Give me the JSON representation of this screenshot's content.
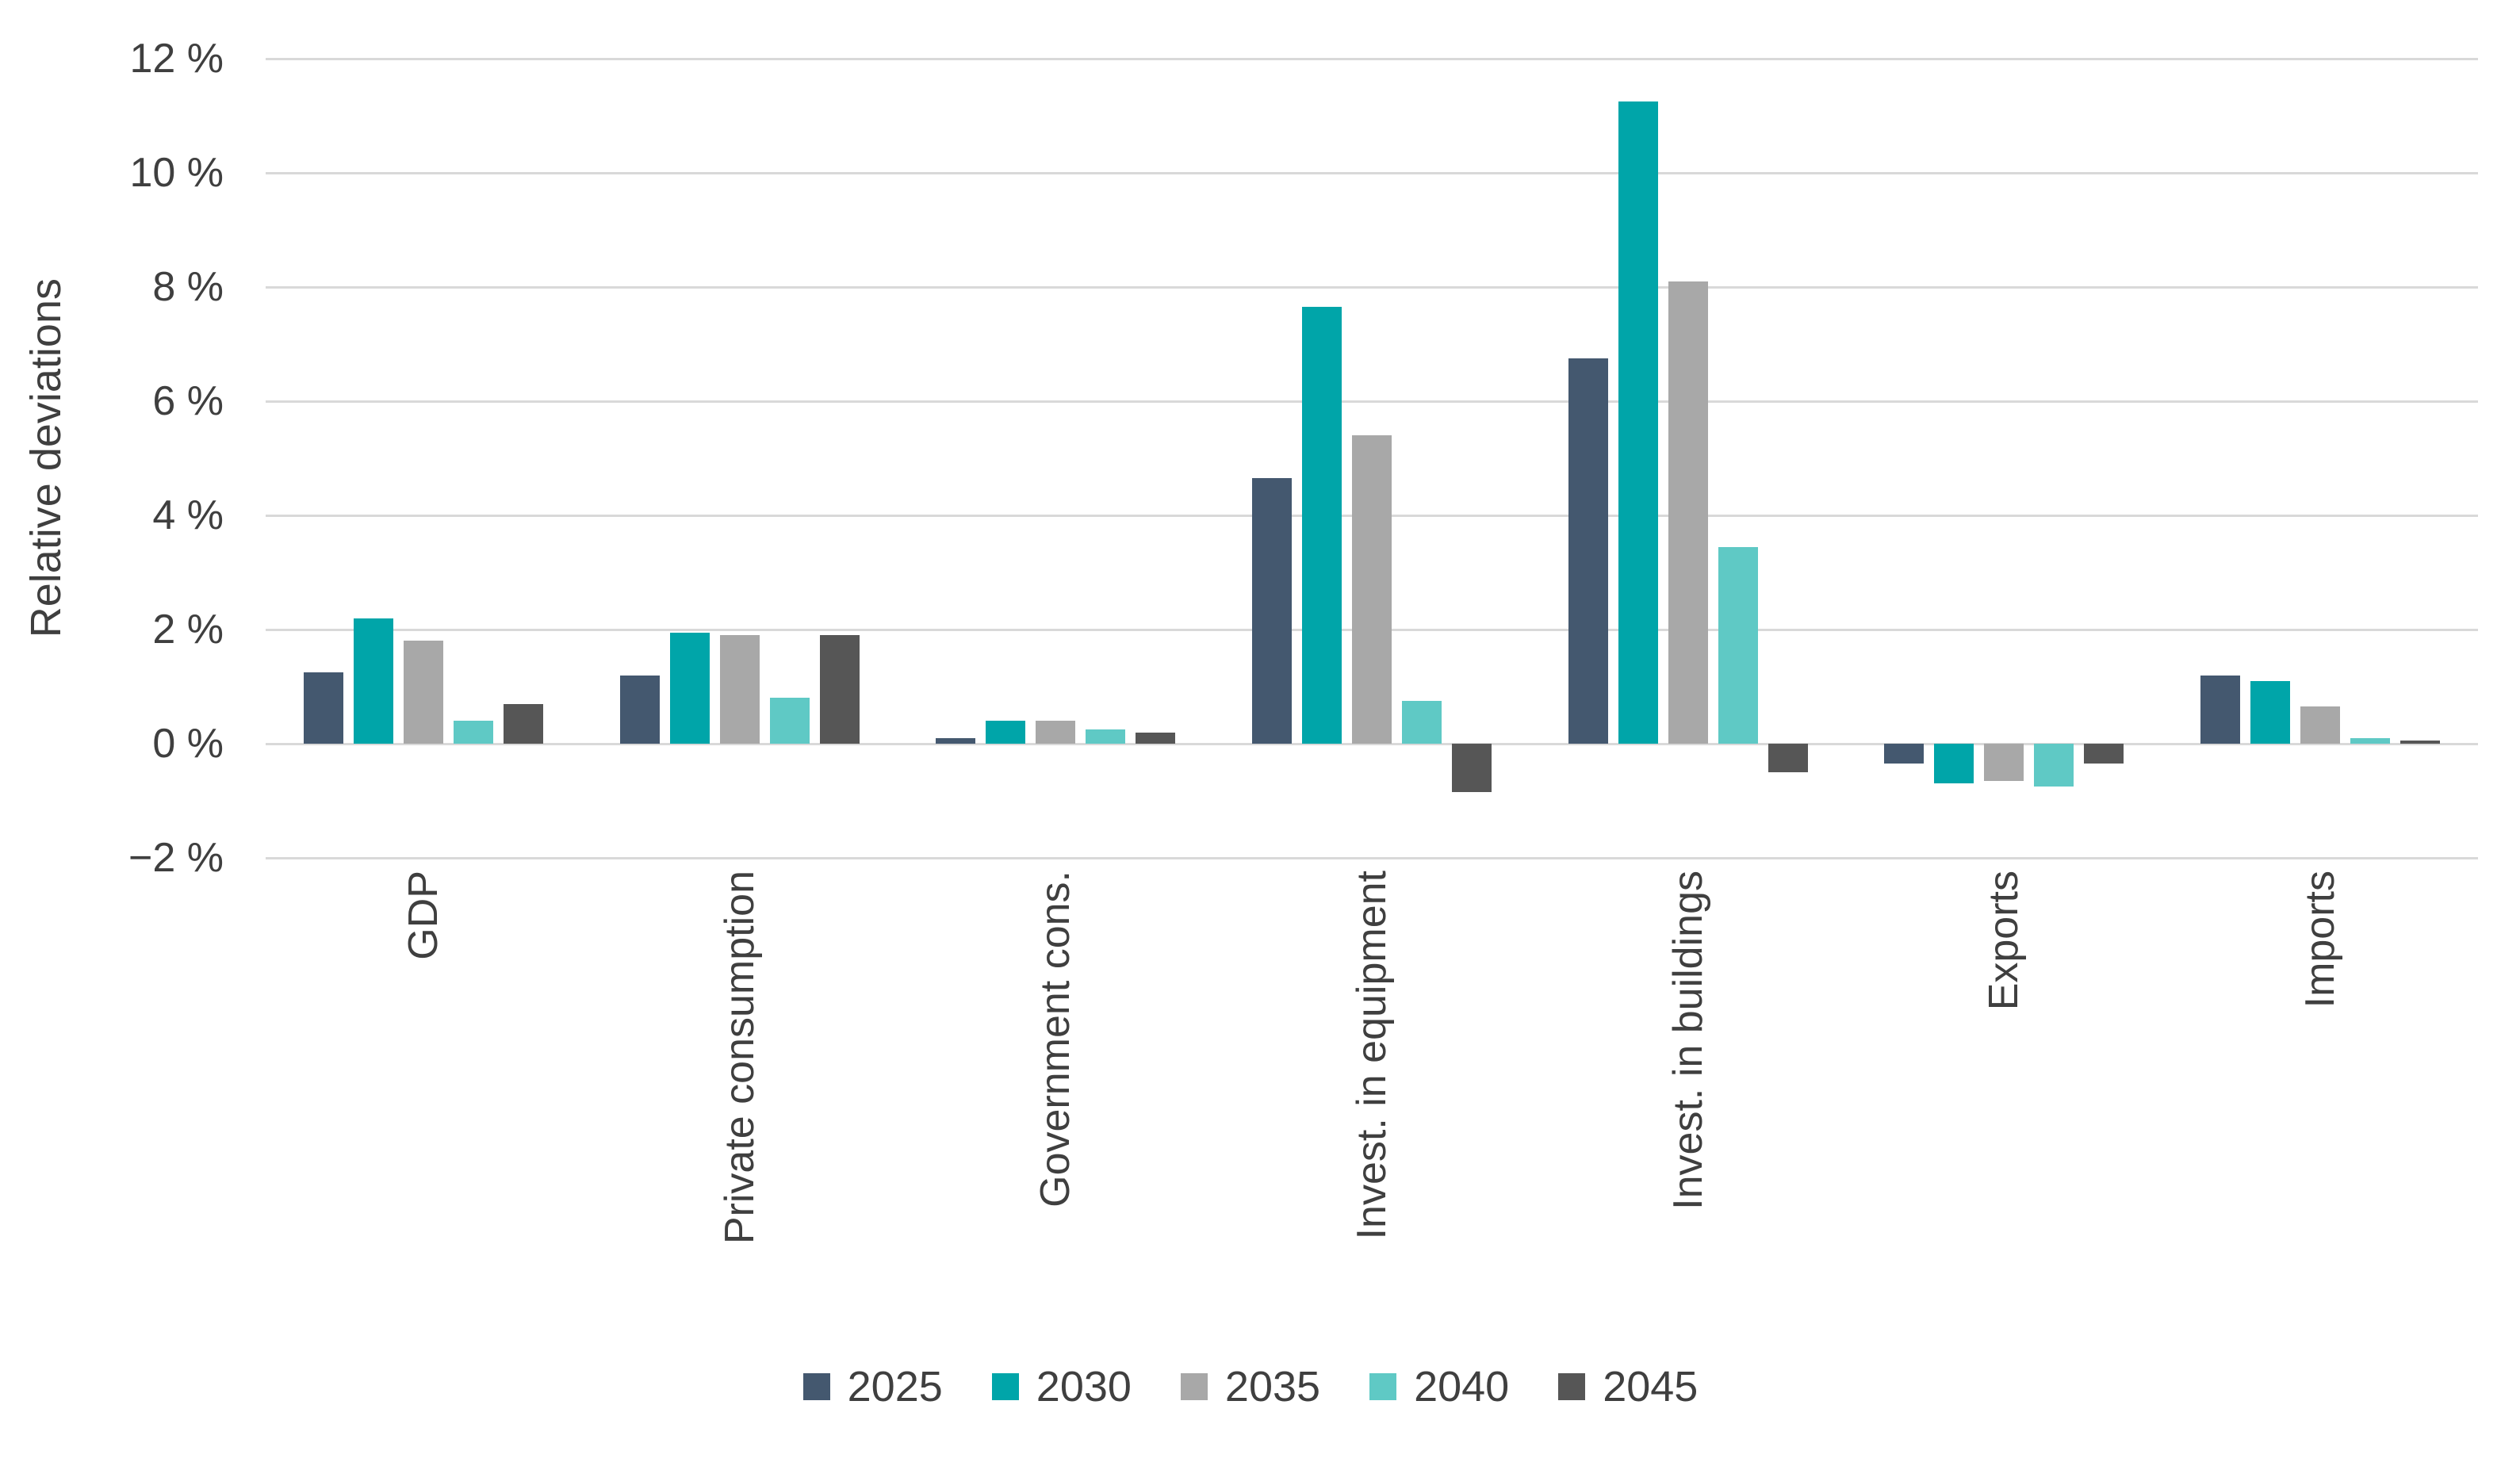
{
  "chart_data": {
    "type": "bar",
    "title": "",
    "ylabel": "Relative deviations",
    "categories": [
      "GDP",
      "Private consumption",
      "Government cons.",
      "Invest. in equipment",
      "Invest. in buildings",
      "Exports",
      "Imports"
    ],
    "series": [
      {
        "name": "2025",
        "color": "#44586F",
        "values": [
          1.25,
          1.2,
          0.1,
          4.65,
          6.75,
          -0.35,
          1.2
        ]
      },
      {
        "name": "2030",
        "color": "#00A5A9",
        "values": [
          2.2,
          1.95,
          0.4,
          7.65,
          11.25,
          -0.7,
          1.1
        ]
      },
      {
        "name": "2035",
        "color": "#A8A8A8",
        "values": [
          1.8,
          1.9,
          0.4,
          5.4,
          8.1,
          -0.65,
          0.65
        ]
      },
      {
        "name": "2040",
        "color": "#5FC9C5",
        "values": [
          0.4,
          0.8,
          0.25,
          0.75,
          3.45,
          -0.75,
          0.1
        ]
      },
      {
        "name": "2045",
        "color": "#565656",
        "values": [
          0.7,
          1.9,
          0.2,
          -0.85,
          -0.5,
          -0.35,
          0.05
        ]
      }
    ],
    "ylim": [
      -2,
      12
    ],
    "yticks": [
      {
        "value": 12,
        "label": "12 %"
      },
      {
        "value": 10,
        "label": "10 %"
      },
      {
        "value": 8,
        "label": "8 %"
      },
      {
        "value": 6,
        "label": "6 %"
      },
      {
        "value": 4,
        "label": "4 %"
      },
      {
        "value": 2,
        "label": "2 %"
      },
      {
        "value": 0,
        "label": "0 %"
      },
      {
        "value": -2,
        "label": "−2 %"
      }
    ],
    "grid": "horizontal",
    "gridline_color": "#D9D9D9",
    "text_color": "#3F3F3F",
    "background": "#FFFFFF",
    "legend_position": "bottom",
    "legend": [
      "2025",
      "2030",
      "2035",
      "2040",
      "2045"
    ]
  }
}
